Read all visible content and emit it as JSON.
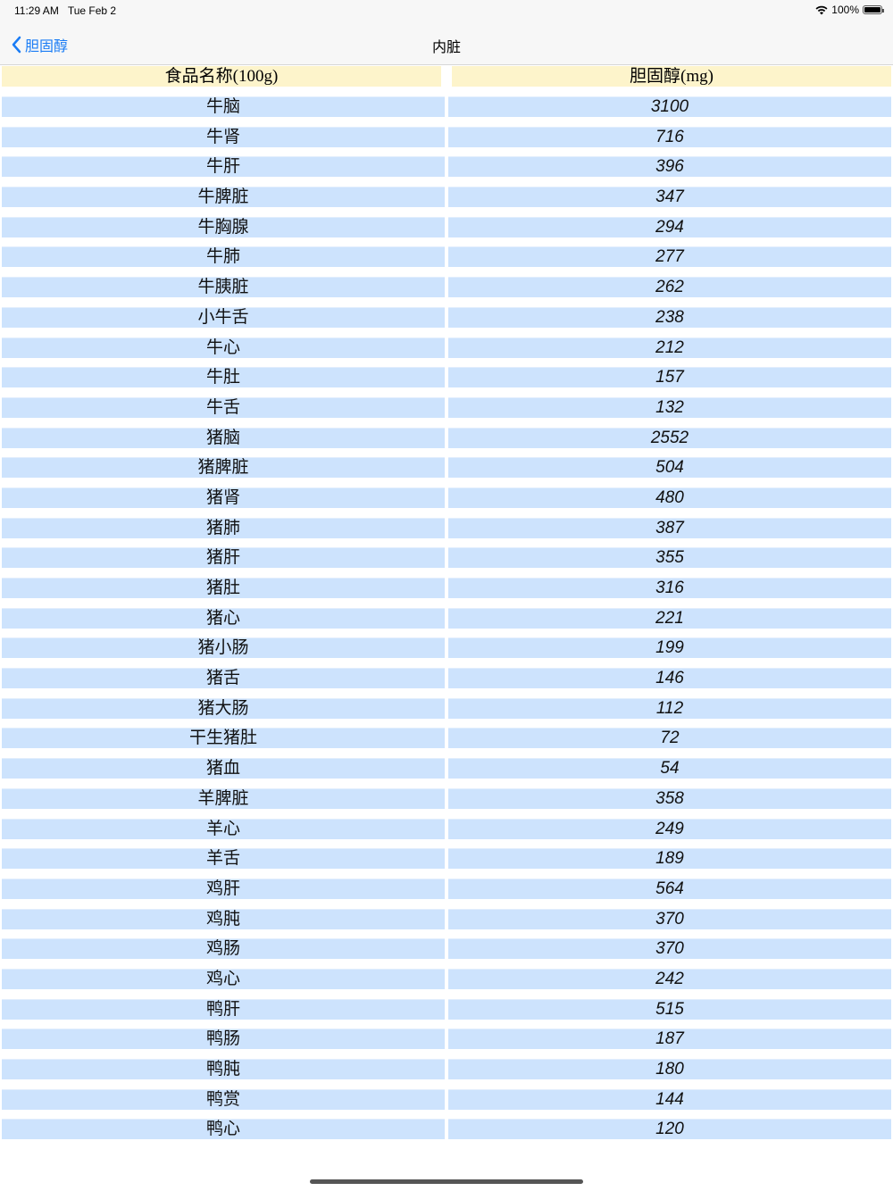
{
  "status": {
    "time": "11:29 AM",
    "date": "Tue Feb 2",
    "battery": "100%"
  },
  "nav": {
    "back_label": "胆固醇",
    "title": "内脏"
  },
  "table": {
    "headers": [
      "食品名称(100g)",
      "胆固醇(mg)"
    ],
    "rows": [
      [
        "牛脑",
        "3100"
      ],
      [
        "牛肾",
        "716"
      ],
      [
        "牛肝",
        "396"
      ],
      [
        "牛脾脏",
        "347"
      ],
      [
        "牛胸腺",
        "294"
      ],
      [
        "牛肺",
        "277"
      ],
      [
        "牛胰脏",
        "262"
      ],
      [
        "小牛舌",
        "238"
      ],
      [
        "牛心",
        "212"
      ],
      [
        "牛肚",
        "157"
      ],
      [
        "牛舌",
        "132"
      ],
      [
        "猪脑",
        "2552"
      ],
      [
        "猪脾脏",
        "504"
      ],
      [
        "猪肾",
        "480"
      ],
      [
        "猪肺",
        "387"
      ],
      [
        "猪肝",
        "355"
      ],
      [
        "猪肚",
        "316"
      ],
      [
        "猪心",
        "221"
      ],
      [
        "猪小肠",
        "199"
      ],
      [
        "猪舌",
        "146"
      ],
      [
        "猪大肠",
        "112"
      ],
      [
        "干生猪肚",
        "72"
      ],
      [
        "猪血",
        "54"
      ],
      [
        "羊脾脏",
        "358"
      ],
      [
        "羊心",
        "249"
      ],
      [
        "羊舌",
        "189"
      ],
      [
        "鸡肝",
        "564"
      ],
      [
        "鸡肫",
        "370"
      ],
      [
        "鸡肠",
        "370"
      ],
      [
        "鸡心",
        "242"
      ],
      [
        "鸭肝",
        "515"
      ],
      [
        "鸭肠",
        "187"
      ],
      [
        "鸭肫",
        "180"
      ],
      [
        "鸭赏",
        "144"
      ],
      [
        "鸭心",
        "120"
      ]
    ]
  },
  "colors": {
    "accent": "#1a7cf5",
    "header_bg": "#fdf4cb",
    "row_bg": "#cde3fd"
  }
}
